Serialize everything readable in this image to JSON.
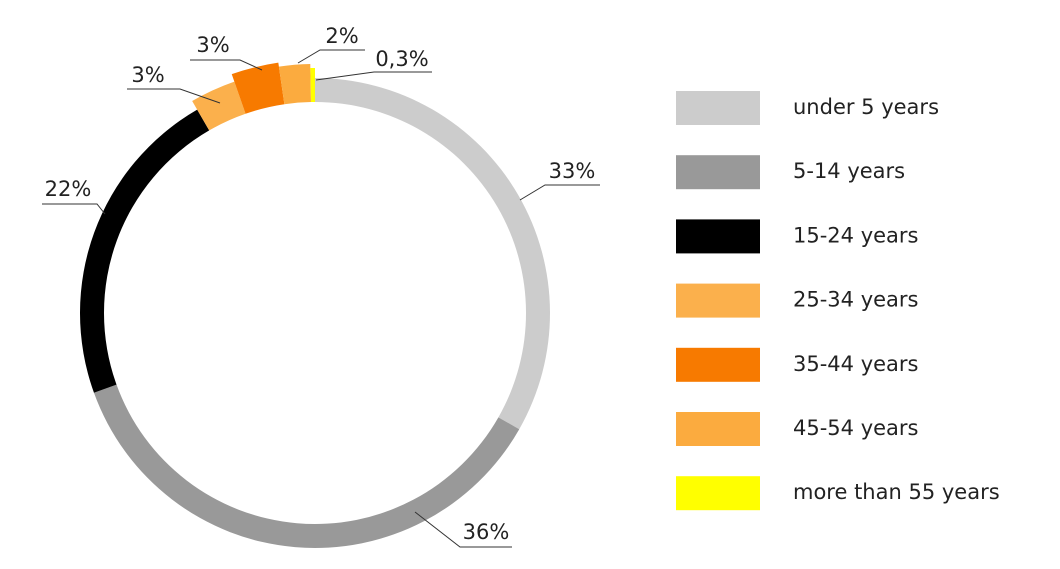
{
  "chart_data": {
    "type": "donut",
    "categories": [
      "under 5 years",
      "5-14 years",
      "15-24 years",
      "25-34 years",
      "35-44 years",
      "45-54 years",
      "more than 55 years"
    ],
    "values": [
      33,
      36,
      22,
      3,
      3,
      2,
      0.3
    ],
    "value_labels": [
      "33%",
      "36%",
      "22%",
      "3%",
      "3%",
      "2%",
      "0,3%"
    ],
    "colors": [
      "#cccccc",
      "#999999",
      "#000000",
      "#fbb04c",
      "#f77a00",
      "#fbab3f",
      "#ffff00"
    ],
    "legend": "right"
  }
}
